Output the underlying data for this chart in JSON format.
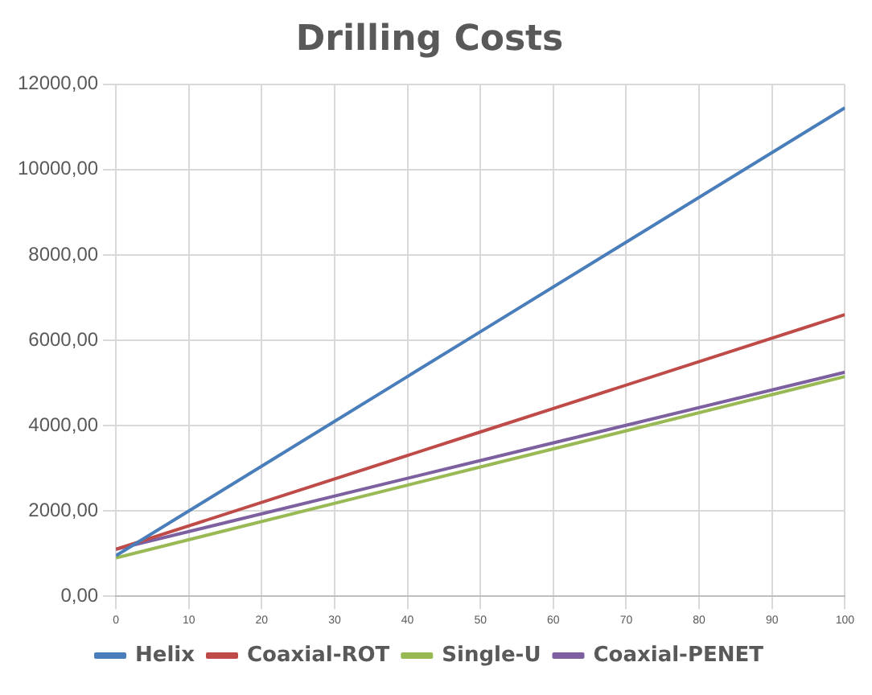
{
  "chart_data": {
    "type": "line",
    "title": "Drilling Costs",
    "series": [
      {
        "name": "Helix",
        "color": "#4a7ebb",
        "x": [
          0,
          50,
          100
        ],
        "values": [
          950,
          6200,
          11450
        ]
      },
      {
        "name": "Coaxial-ROT",
        "color": "#be4b48",
        "x": [
          0,
          50,
          100
        ],
        "values": [
          1100,
          3850,
          6600
        ]
      },
      {
        "name": "Single-U",
        "color": "#98b954",
        "x": [
          0,
          50,
          100
        ],
        "values": [
          900,
          3030,
          5150
        ]
      },
      {
        "name": "Coaxial-PENET",
        "color": "#7d60a0",
        "x": [
          0,
          50,
          100
        ],
        "values": [
          1100,
          3180,
          5250
        ]
      }
    ],
    "xlim": [
      0,
      100
    ],
    "xticks": [
      0,
      10,
      20,
      30,
      40,
      50,
      60,
      70,
      80,
      90,
      100
    ],
    "ylim": [
      0,
      12000
    ],
    "yticks": [
      {
        "value": 0,
        "label": "0,00"
      },
      {
        "value": 2000,
        "label": "2000,00"
      },
      {
        "value": 4000,
        "label": "4000,00"
      },
      {
        "value": 6000,
        "label": "6000,00"
      },
      {
        "value": 8000,
        "label": "8000,00"
      },
      {
        "value": 10000,
        "label": "10000,00"
      },
      {
        "value": 12000,
        "label": "12000,00"
      }
    ],
    "grid": true,
    "legend": "bottom",
    "marker": "none",
    "line_style": "solid"
  }
}
